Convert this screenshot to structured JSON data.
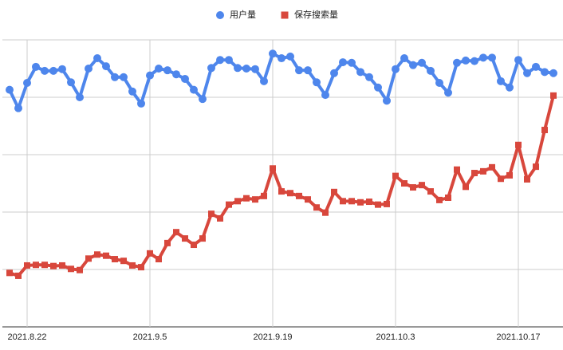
{
  "chart_data": {
    "type": "line",
    "categories": [
      null,
      null,
      "2021.8.22",
      null,
      null,
      null,
      null,
      null,
      null,
      null,
      null,
      null,
      null,
      null,
      null,
      null,
      "2021.9.5",
      null,
      null,
      null,
      null,
      null,
      null,
      null,
      null,
      null,
      null,
      null,
      null,
      null,
      "2021.9.19",
      null,
      null,
      null,
      null,
      null,
      null,
      null,
      null,
      null,
      null,
      null,
      null,
      null,
      "2021.10.3",
      null,
      null,
      null,
      null,
      null,
      null,
      null,
      null,
      null,
      null,
      null,
      null,
      null,
      "2021.10.17",
      null,
      null,
      null,
      null
    ],
    "series": [
      {
        "name": "用户量",
        "color": "#4e86ec",
        "marker": "circle",
        "values": [
          4.13,
          3.81,
          4.25,
          4.53,
          4.46,
          4.46,
          4.49,
          4.26,
          4.0,
          4.5,
          4.68,
          4.54,
          4.35,
          4.35,
          4.1,
          3.89,
          4.38,
          4.5,
          4.47,
          4.4,
          4.32,
          4.13,
          3.97,
          4.51,
          4.65,
          4.65,
          4.51,
          4.5,
          4.49,
          4.28,
          4.76,
          4.68,
          4.71,
          4.47,
          4.47,
          4.26,
          4.04,
          4.42,
          4.61,
          4.6,
          4.44,
          4.35,
          4.17,
          3.94,
          4.49,
          4.68,
          4.56,
          4.6,
          4.46,
          4.25,
          4.08,
          4.6,
          4.64,
          4.63,
          4.69,
          4.69,
          4.28,
          4.17,
          4.65,
          4.42,
          4.53,
          4.44,
          4.42
        ]
      },
      {
        "name": "保存搜索量",
        "color": "#d8473c",
        "marker": "square",
        "values": [
          0.94,
          0.89,
          1.07,
          1.08,
          1.08,
          1.06,
          1.07,
          1.01,
          0.99,
          1.19,
          1.26,
          1.24,
          1.18,
          1.15,
          1.07,
          1.04,
          1.28,
          1.18,
          1.46,
          1.65,
          1.54,
          1.43,
          1.54,
          1.97,
          1.89,
          2.13,
          2.19,
          2.24,
          2.22,
          2.28,
          2.76,
          2.36,
          2.33,
          2.28,
          2.22,
          2.08,
          1.99,
          2.35,
          2.19,
          2.19,
          2.17,
          2.18,
          2.13,
          2.14,
          2.63,
          2.5,
          2.43,
          2.47,
          2.36,
          2.21,
          2.25,
          2.74,
          2.44,
          2.68,
          2.71,
          2.78,
          2.58,
          2.64,
          3.17,
          2.57,
          2.79,
          3.43,
          4.03
        ]
      }
    ],
    "ylim": [
      0,
      5
    ],
    "yticks": [
      0,
      1,
      2,
      3,
      4,
      5
    ],
    "grid": true,
    "legend": "top"
  }
}
